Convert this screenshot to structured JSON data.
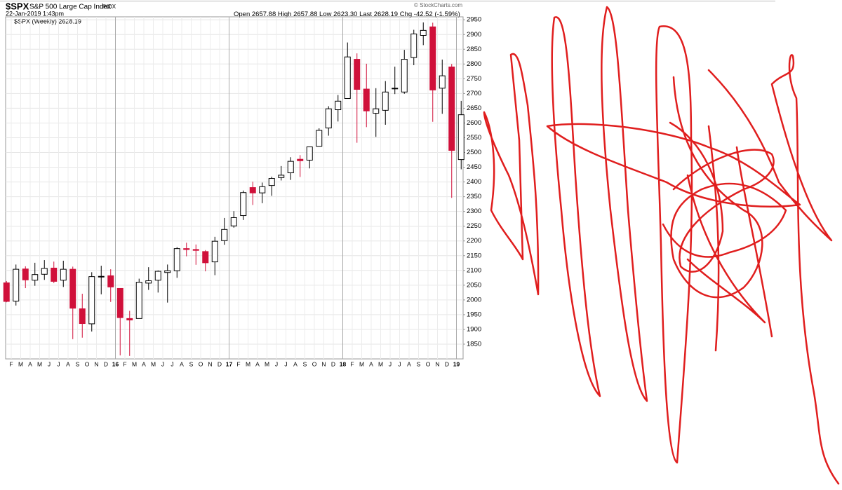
{
  "chart_data": {
    "type": "candlestick",
    "header": {
      "symbol": "$SPX",
      "name": "S&P 500 Large Cap Index",
      "exchange": "INDX",
      "date": "22-Jan-2019 1:43pm",
      "open_label": "Open",
      "open": "2657.88",
      "high_label": "High",
      "high": "2657.88",
      "low_label": "Low",
      "low": "2623.30",
      "last_label": "Last",
      "last": "2628.19",
      "chg_label": "Chg",
      "chg": "-42.52 (-1.59%)",
      "source": "© StockCharts.com"
    },
    "legend_label": "$SPX (Weekly) 2628.19",
    "categories": [
      null,
      "F",
      "M",
      "A",
      "M",
      "J",
      "J",
      "A",
      "S",
      "O",
      "N",
      "D",
      "16",
      "F",
      "M",
      "A",
      "M",
      "J",
      "J",
      "A",
      "S",
      "O",
      "N",
      "D",
      "17",
      "F",
      "M",
      "A",
      "M",
      "J",
      "J",
      "A",
      "S",
      "O",
      "N",
      "D",
      "18",
      "F",
      "M",
      "A",
      "M",
      "J",
      "J",
      "A",
      "S",
      "O",
      "N",
      "D",
      "19"
    ],
    "open": [
      2058,
      1996,
      2105,
      2067,
      2087,
      2108,
      2067,
      2104,
      1970,
      1919,
      2080,
      2082,
      2039,
      1937,
      1937,
      2057,
      2067,
      2093,
      2099,
      2174,
      2171,
      2164,
      2129,
      2201,
      2251,
      2286,
      2381,
      2363,
      2388,
      2415,
      2431,
      2477,
      2474,
      2521,
      2583,
      2645,
      2683,
      2816,
      2715,
      2633,
      2643,
      2718,
      2705,
      2822,
      2897,
      2926,
      2718,
      2790,
      2476
    ],
    "high": [
      2064,
      2120,
      2114,
      2126,
      2135,
      2130,
      2133,
      2113,
      2021,
      2094,
      2116,
      2104,
      2039,
      1963,
      2072,
      2111,
      2100,
      2120,
      2179,
      2194,
      2188,
      2169,
      2214,
      2278,
      2301,
      2371,
      2401,
      2398,
      2418,
      2454,
      2484,
      2491,
      2519,
      2582,
      2657,
      2695,
      2873,
      2836,
      2801,
      2718,
      2742,
      2791,
      2848,
      2916,
      2941,
      2940,
      2815,
      2800,
      2675
    ],
    "low": [
      1992,
      1981,
      2040,
      2048,
      2068,
      2057,
      2044,
      1867,
      1872,
      1893,
      2019,
      1993,
      1812,
      1810,
      1937,
      2034,
      2025,
      1991,
      2075,
      2148,
      2119,
      2097,
      2084,
      2187,
      2245,
      2271,
      2322,
      2328,
      2353,
      2405,
      2407,
      2417,
      2446,
      2520,
      2557,
      2605,
      2683,
      2533,
      2586,
      2553,
      2594,
      2698,
      2699,
      2796,
      2864,
      2604,
      2631,
      2346,
      2443
    ],
    "close": [
      1995,
      2104,
      2068,
      2086,
      2107,
      2063,
      2104,
      1972,
      1920,
      2079,
      2080,
      2044,
      1940,
      1932,
      2060,
      2065,
      2097,
      2099,
      2174,
      2171,
      2168,
      2126,
      2199,
      2239,
      2279,
      2364,
      2363,
      2384,
      2412,
      2423,
      2470,
      2472,
      2519,
      2575,
      2648,
      2674,
      2824,
      2714,
      2641,
      2648,
      2705,
      2718,
      2816,
      2902,
      2914,
      2712,
      2760,
      2507,
      2628
    ],
    "up_color": "#000000",
    "down_color": "#d0103a",
    "ylim": [
      1800,
      2960
    ],
    "yticks": [
      1850,
      1900,
      1950,
      2000,
      2050,
      2100,
      2150,
      2200,
      2250,
      2300,
      2350,
      2400,
      2450,
      2500,
      2550,
      2600,
      2650,
      2700,
      2750,
      2800,
      2850,
      2900,
      2950
    ],
    "grid": true
  }
}
